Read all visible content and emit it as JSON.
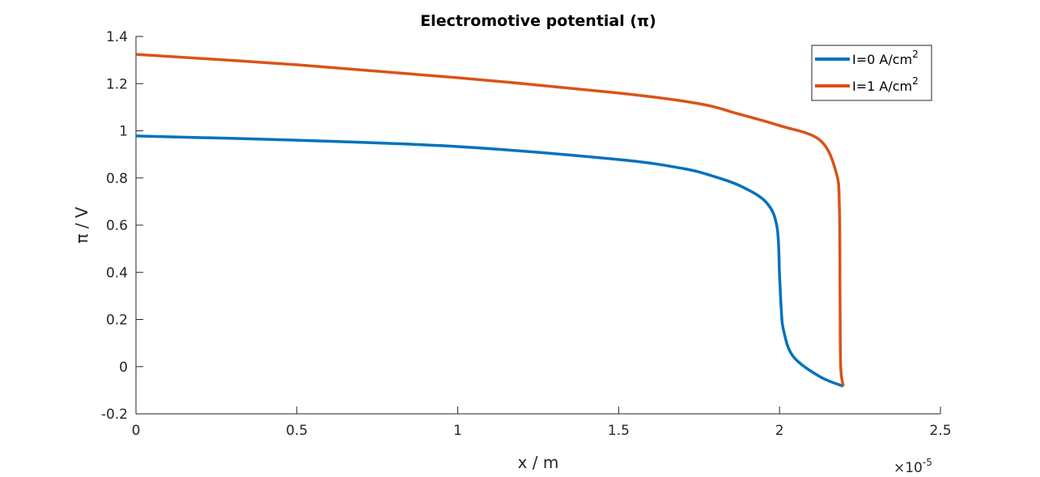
{
  "chart_data": {
    "type": "line",
    "title": "Electromotive potential (π)",
    "xlabel": "x / m",
    "ylabel": "π / V",
    "x_exponent_label": "×10",
    "x_exponent": "-5",
    "xlim": [
      0,
      2.5
    ],
    "ylim": [
      -0.2,
      1.4
    ],
    "xticks": [
      "0",
      "0.5",
      "1",
      "1.5",
      "2",
      "2.5"
    ],
    "yticks": [
      "-0.2",
      "0",
      "0.2",
      "0.4",
      "0.6",
      "0.8",
      "1",
      "1.2",
      "1.4"
    ],
    "grid": false,
    "legend_placement": "top-right",
    "series": [
      {
        "name": "I=0 A/cm",
        "name_sup": "2",
        "color": "#0072BD",
        "x": [
          0,
          0.5,
          1.0,
          1.5,
          1.7,
          1.79,
          1.88,
          1.959,
          1.992,
          2.0,
          2.005,
          2.012,
          2.042,
          2.125,
          2.198
        ],
        "y": [
          0.978,
          0.96,
          0.933,
          0.878,
          0.84,
          0.809,
          0.765,
          0.696,
          0.593,
          0.387,
          0.25,
          0.157,
          0.044,
          -0.042,
          -0.083
        ]
      },
      {
        "name": "I=1 A/cm",
        "name_sup": "2",
        "color": "#D95319",
        "x": [
          0,
          0.5,
          1.0,
          1.5,
          1.75,
          1.866,
          2.0,
          2.125,
          2.176,
          2.186,
          2.188,
          2.19,
          2.198
        ],
        "y": [
          1.324,
          1.28,
          1.225,
          1.16,
          1.115,
          1.074,
          1.022,
          0.961,
          0.823,
          0.672,
          0.274,
          0.0,
          -0.083
        ]
      }
    ]
  }
}
